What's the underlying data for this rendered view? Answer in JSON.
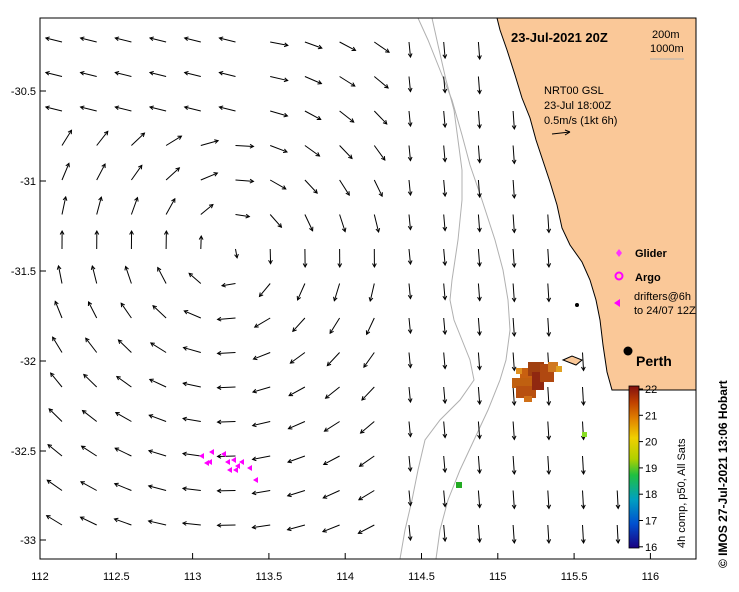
{
  "title": "23-Jul-2021 20Z",
  "contour_legend": [
    "200m",
    "1000m"
  ],
  "current_legend": {
    "source": "NRT00 GSL",
    "time": "23-Jul 18:00Z",
    "scale": "0.5m/s (1kt 6h)"
  },
  "symbol_legend": {
    "glider": "Glider",
    "argo": "Argo",
    "drifters": [
      "drifters@6h",
      "to 24/07 12Z"
    ]
  },
  "city": "Perth",
  "colorbar": {
    "ticks": [
      "22",
      "21",
      "20",
      "19",
      "18",
      "17",
      "16"
    ],
    "label": "4h comp, p50, All Sats"
  },
  "credit": "©  IMOS 27-Jul-2021 13:06 Hobart",
  "y_ticks": [
    "-30.5",
    "-31",
    "-31.5",
    "-32",
    "-32.5",
    "-33"
  ],
  "x_ticks": [
    "112",
    "112.5",
    "113",
    "113.5",
    "114",
    "114.5",
    "115",
    "115.5",
    "116"
  ],
  "extent": {
    "lon": [
      112,
      116.3
    ],
    "lat": [
      -33.1,
      -30.1
    ]
  },
  "colors": {
    "land": "#fac898",
    "argo": "#ff00ff",
    "glider": "#ff33ff",
    "contour": "#b0b0b0",
    "green_obs": "#22aa22"
  }
}
